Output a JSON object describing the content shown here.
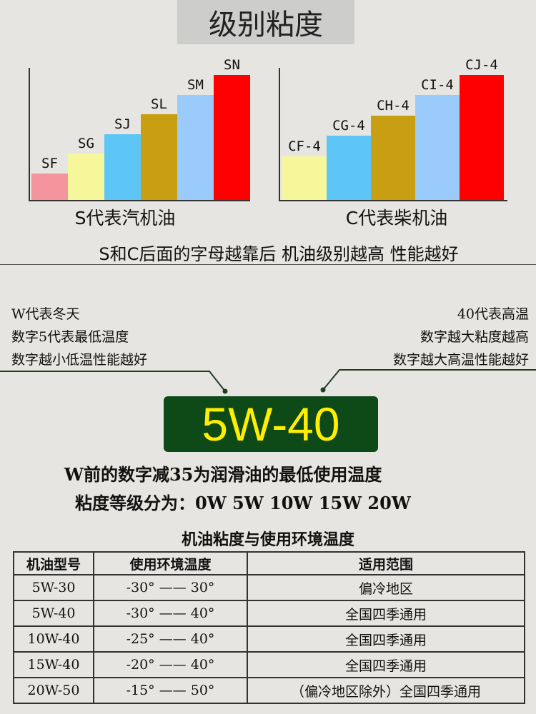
{
  "title": "级别粘度",
  "gasoline_chart": {
    "caption": "S代表汽机油",
    "grades": [
      {
        "label": "SF",
        "color": "#f4949c",
        "level": 1
      },
      {
        "label": "SG",
        "color": "#f6f79a",
        "level": 2
      },
      {
        "label": "SJ",
        "color": "#5ec6f6",
        "level": 3
      },
      {
        "label": "SL",
        "color": "#c89e12",
        "level": 4
      },
      {
        "label": "SM",
        "color": "#9acbfb",
        "level": 5
      },
      {
        "label": "SN",
        "color": "#ff0000",
        "level": 6
      }
    ]
  },
  "diesel_chart": {
    "caption": "C代表柴机油",
    "grades": [
      {
        "label": "CF-4",
        "color": "#f6f79a",
        "level": 1
      },
      {
        "label": "CG-4",
        "color": "#5ec6f6",
        "level": 2
      },
      {
        "label": "CH-4",
        "color": "#c89e12",
        "level": 3
      },
      {
        "label": "CI-4",
        "color": "#9acbfb",
        "level": 4
      },
      {
        "label": "CJ-4",
        "color": "#ff0000",
        "level": 5
      }
    ]
  },
  "grade_note": "S和C后面的字母越靠后 机油级别越高 性能越好",
  "left_notes": [
    "W代表冬天",
    "数字5代表最低温度",
    "数字越小低温性能越好"
  ],
  "right_notes": [
    "40代表高温",
    "数字越大粘度越高",
    "数字越大高温性能越好"
  ],
  "badge": "5W-40",
  "line1": "W前的数字减35为润滑油的最低使用温度",
  "line2": "粘度等级分为：0W 5W 10W 15W 20W",
  "table": {
    "title": "机油粘度与使用环境温度",
    "headers": [
      "机油型号",
      "使用环境温度",
      "适用范围"
    ],
    "rows": [
      [
        "5W-30",
        "-30° —— 30°",
        "偏冷地区"
      ],
      [
        "5W-40",
        "-30° —— 40°",
        "全国四季通用"
      ],
      [
        "10W-40",
        "-25° —— 40°",
        "全国四季通用"
      ],
      [
        "15W-40",
        "-20° —— 40°",
        "全国四季通用"
      ],
      [
        "20W-50",
        "-15° —— 50°",
        "（偏冷地区除外）全国四季通用"
      ]
    ]
  }
}
